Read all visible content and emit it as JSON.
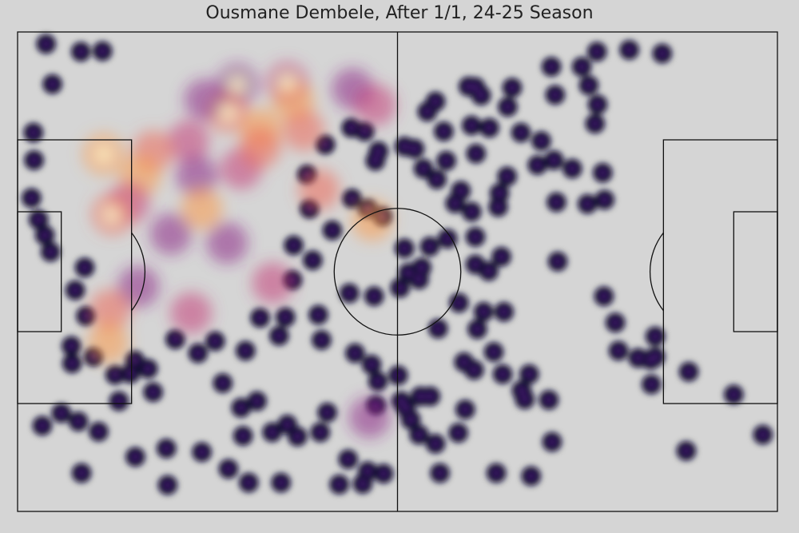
{
  "chart_data": {
    "type": "heatmap",
    "title": "Ousmane Dembele, After 1/1, 24-25 Season",
    "xlabel": "",
    "ylabel": "",
    "xlim": [
      0,
      120
    ],
    "ylim": [
      0,
      80
    ],
    "grid": false,
    "legend": "none",
    "colormap": [
      "#0d0829",
      "#2a1158",
      "#5a1d8a",
      "#8d2a87",
      "#c4407a",
      "#ec6a5a",
      "#fb9b4a",
      "#fcd17a",
      "#fff6c6"
    ],
    "background_color": "#d5d5d5",
    "line_color": "#111111",
    "points": [
      [
        4.5,
        2
      ],
      [
        10,
        3.3
      ],
      [
        13.4,
        3.2
      ],
      [
        5.5,
        8.7
      ],
      [
        2.5,
        16.8
      ],
      [
        2.6,
        21.4
      ],
      [
        2.2,
        27.7
      ],
      [
        3.3,
        31.3
      ],
      [
        4.3,
        33.9
      ],
      [
        5.2,
        36.7
      ],
      [
        10.6,
        39.3
      ],
      [
        9.1,
        43.1
      ],
      [
        10.8,
        47.4
      ],
      [
        8.5,
        52.4
      ],
      [
        8.6,
        55.3
      ],
      [
        6.9,
        63.6
      ],
      [
        3.9,
        65.7
      ],
      [
        9.6,
        65
      ],
      [
        12.8,
        66.7
      ],
      [
        18.6,
        70.9
      ],
      [
        10.1,
        73.6
      ],
      [
        23.5,
        69.5
      ],
      [
        23.7,
        75.6
      ],
      [
        29.1,
        70.1
      ],
      [
        33.3,
        72.9
      ],
      [
        36.5,
        75.2
      ],
      [
        41.6,
        75.2
      ],
      [
        35.6,
        67.4
      ],
      [
        40.2,
        66.8
      ],
      [
        44.2,
        67.5
      ],
      [
        47.8,
        66.8
      ],
      [
        42.6,
        65.5
      ],
      [
        48.9,
        63.5
      ],
      [
        50.8,
        75.5
      ],
      [
        54.5,
        75.4
      ],
      [
        55.3,
        73.3
      ],
      [
        52.2,
        71.3
      ],
      [
        57.8,
        73.7
      ],
      [
        35.3,
        62.7
      ],
      [
        32.4,
        58.6
      ],
      [
        37.8,
        61.6
      ],
      [
        16,
        61.6
      ],
      [
        21.4,
        60.1
      ],
      [
        15.4,
        57.2
      ],
      [
        17.8,
        57
      ],
      [
        20.6,
        56.2
      ],
      [
        12,
        54.2
      ],
      [
        18.5,
        54.8
      ],
      [
        24.9,
        51.3
      ],
      [
        28.5,
        53.6
      ],
      [
        31.2,
        51.6
      ],
      [
        36,
        53.2
      ],
      [
        41.3,
        50.7
      ],
      [
        42.3,
        47.6
      ],
      [
        38.3,
        47.7
      ],
      [
        47.5,
        47.2
      ],
      [
        48,
        51.4
      ],
      [
        53.3,
        53.6
      ],
      [
        55.9,
        55.5
      ],
      [
        56.9,
        58.3
      ],
      [
        56.6,
        62.3
      ],
      [
        43.4,
        41.4
      ],
      [
        46.6,
        38.1
      ],
      [
        43.6,
        35.6
      ],
      [
        49.7,
        33.1
      ],
      [
        46.1,
        29.5
      ],
      [
        45.7,
        23.8
      ],
      [
        48.6,
        18.8
      ],
      [
        52.7,
        16
      ],
      [
        54.8,
        16.6
      ],
      [
        56.5,
        21.5
      ],
      [
        52.8,
        27.8
      ],
      [
        55.3,
        29.5
      ],
      [
        57.6,
        30.8
      ],
      [
        57,
        19.9
      ],
      [
        61.1,
        19.1
      ],
      [
        64.7,
        13.3
      ],
      [
        66,
        11.6
      ],
      [
        71.2,
        9.1
      ],
      [
        72.3,
        9.2
      ],
      [
        73.2,
        10.6
      ],
      [
        77.4,
        12.5
      ],
      [
        78.1,
        9.3
      ],
      [
        71.7,
        15.6
      ],
      [
        67.3,
        16.6
      ],
      [
        62.7,
        19.5
      ],
      [
        64.1,
        22.8
      ],
      [
        66.2,
        24.6
      ],
      [
        69.1,
        28.6
      ],
      [
        71.7,
        30
      ],
      [
        76.1,
        26.9
      ],
      [
        77.3,
        24.1
      ],
      [
        75.9,
        29.2
      ],
      [
        63.8,
        39.3
      ],
      [
        67.9,
        34.5
      ],
      [
        72.3,
        34.2
      ],
      [
        72.3,
        38.8
      ],
      [
        76.4,
        37.5
      ],
      [
        74.4,
        39.9
      ],
      [
        69.7,
        45.2
      ],
      [
        73.6,
        46.7
      ],
      [
        76.8,
        46.7
      ],
      [
        75.2,
        53.4
      ],
      [
        72.6,
        49.6
      ],
      [
        72.1,
        56.4
      ],
      [
        63.6,
        60.8
      ],
      [
        65.2,
        60.8
      ],
      [
        69.6,
        66.9
      ],
      [
        66.7,
        73.6
      ],
      [
        75.6,
        73.6
      ],
      [
        81.1,
        74.1
      ],
      [
        84.4,
        68.4
      ],
      [
        83.9,
        61.4
      ],
      [
        80.1,
        61.3
      ],
      [
        79.6,
        59.8
      ],
      [
        80.8,
        57.1
      ],
      [
        76.6,
        57.1
      ],
      [
        70.5,
        55.1
      ],
      [
        70.7,
        63
      ],
      [
        60.1,
        57.3
      ],
      [
        60.6,
        61.6
      ],
      [
        61.3,
        62.7
      ],
      [
        62.1,
        64.7
      ],
      [
        63.4,
        67.2
      ],
      [
        66,
        68.7
      ],
      [
        66.4,
        49.5
      ],
      [
        63.4,
        41.3
      ],
      [
        61.7,
        40.2
      ],
      [
        60.4,
        42.7
      ],
      [
        56.3,
        44.1
      ],
      [
        52.4,
        43.6
      ],
      [
        61.1,
        36.1
      ],
      [
        65.1,
        35.8
      ],
      [
        70,
        26.5
      ],
      [
        67.7,
        21.5
      ],
      [
        72.4,
        20.3
      ],
      [
        74.5,
        16
      ],
      [
        79.5,
        16.8
      ],
      [
        82.7,
        18.2
      ],
      [
        82.1,
        22.2
      ],
      [
        84.7,
        21.4
      ],
      [
        87.6,
        22.8
      ],
      [
        85.1,
        28.4
      ],
      [
        85.3,
        38.3
      ],
      [
        90,
        28.7
      ],
      [
        92.7,
        28
      ],
      [
        92.4,
        23.5
      ],
      [
        91.2,
        15.3
      ],
      [
        91.6,
        12.1
      ],
      [
        90.2,
        8.9
      ],
      [
        84.9,
        10.5
      ],
      [
        84.3,
        5.8
      ],
      [
        89.1,
        5.8
      ],
      [
        91.5,
        3.3
      ],
      [
        96.6,
        3
      ],
      [
        101.8,
        3.6
      ],
      [
        94.9,
        53.2
      ],
      [
        98,
        54.4
      ],
      [
        100,
        54.7
      ],
      [
        100.1,
        58.8
      ],
      [
        106,
        56.7
      ],
      [
        105.6,
        69.9
      ],
      [
        113.1,
        60.5
      ],
      [
        117.7,
        67.2
      ],
      [
        92.6,
        44.1
      ],
      [
        94.4,
        48.5
      ],
      [
        100.7,
        50.8
      ],
      [
        100.7,
        54.2
      ]
    ],
    "hotspots": [
      [
        34.7,
        8.8
      ],
      [
        42.6,
        8.5
      ],
      [
        33.1,
        13.3
      ],
      [
        43.6,
        11.5
      ],
      [
        52.9,
        9.5
      ],
      [
        56.5,
        12.2
      ],
      [
        45.2,
        16.4
      ],
      [
        38.4,
        16.2
      ],
      [
        29.6,
        11.3
      ],
      [
        27,
        18.2
      ],
      [
        21.4,
        19.9
      ],
      [
        19.3,
        24.1
      ],
      [
        28.3,
        24
      ],
      [
        35.3,
        22.8
      ],
      [
        38.3,
        19.3
      ],
      [
        29.1,
        29.5
      ],
      [
        24.2,
        33.7
      ],
      [
        17.6,
        28.5
      ],
      [
        15,
        30.4
      ],
      [
        13.6,
        20.4
      ],
      [
        19.1,
        42.5
      ],
      [
        27.4,
        46.9
      ],
      [
        14.6,
        46.4
      ],
      [
        14.3,
        51.9
      ],
      [
        33.1,
        35.2
      ],
      [
        40.3,
        41.9
      ],
      [
        47.6,
        26.3
      ],
      [
        56,
        31.4
      ],
      [
        55.6,
        64.3
      ]
    ]
  }
}
